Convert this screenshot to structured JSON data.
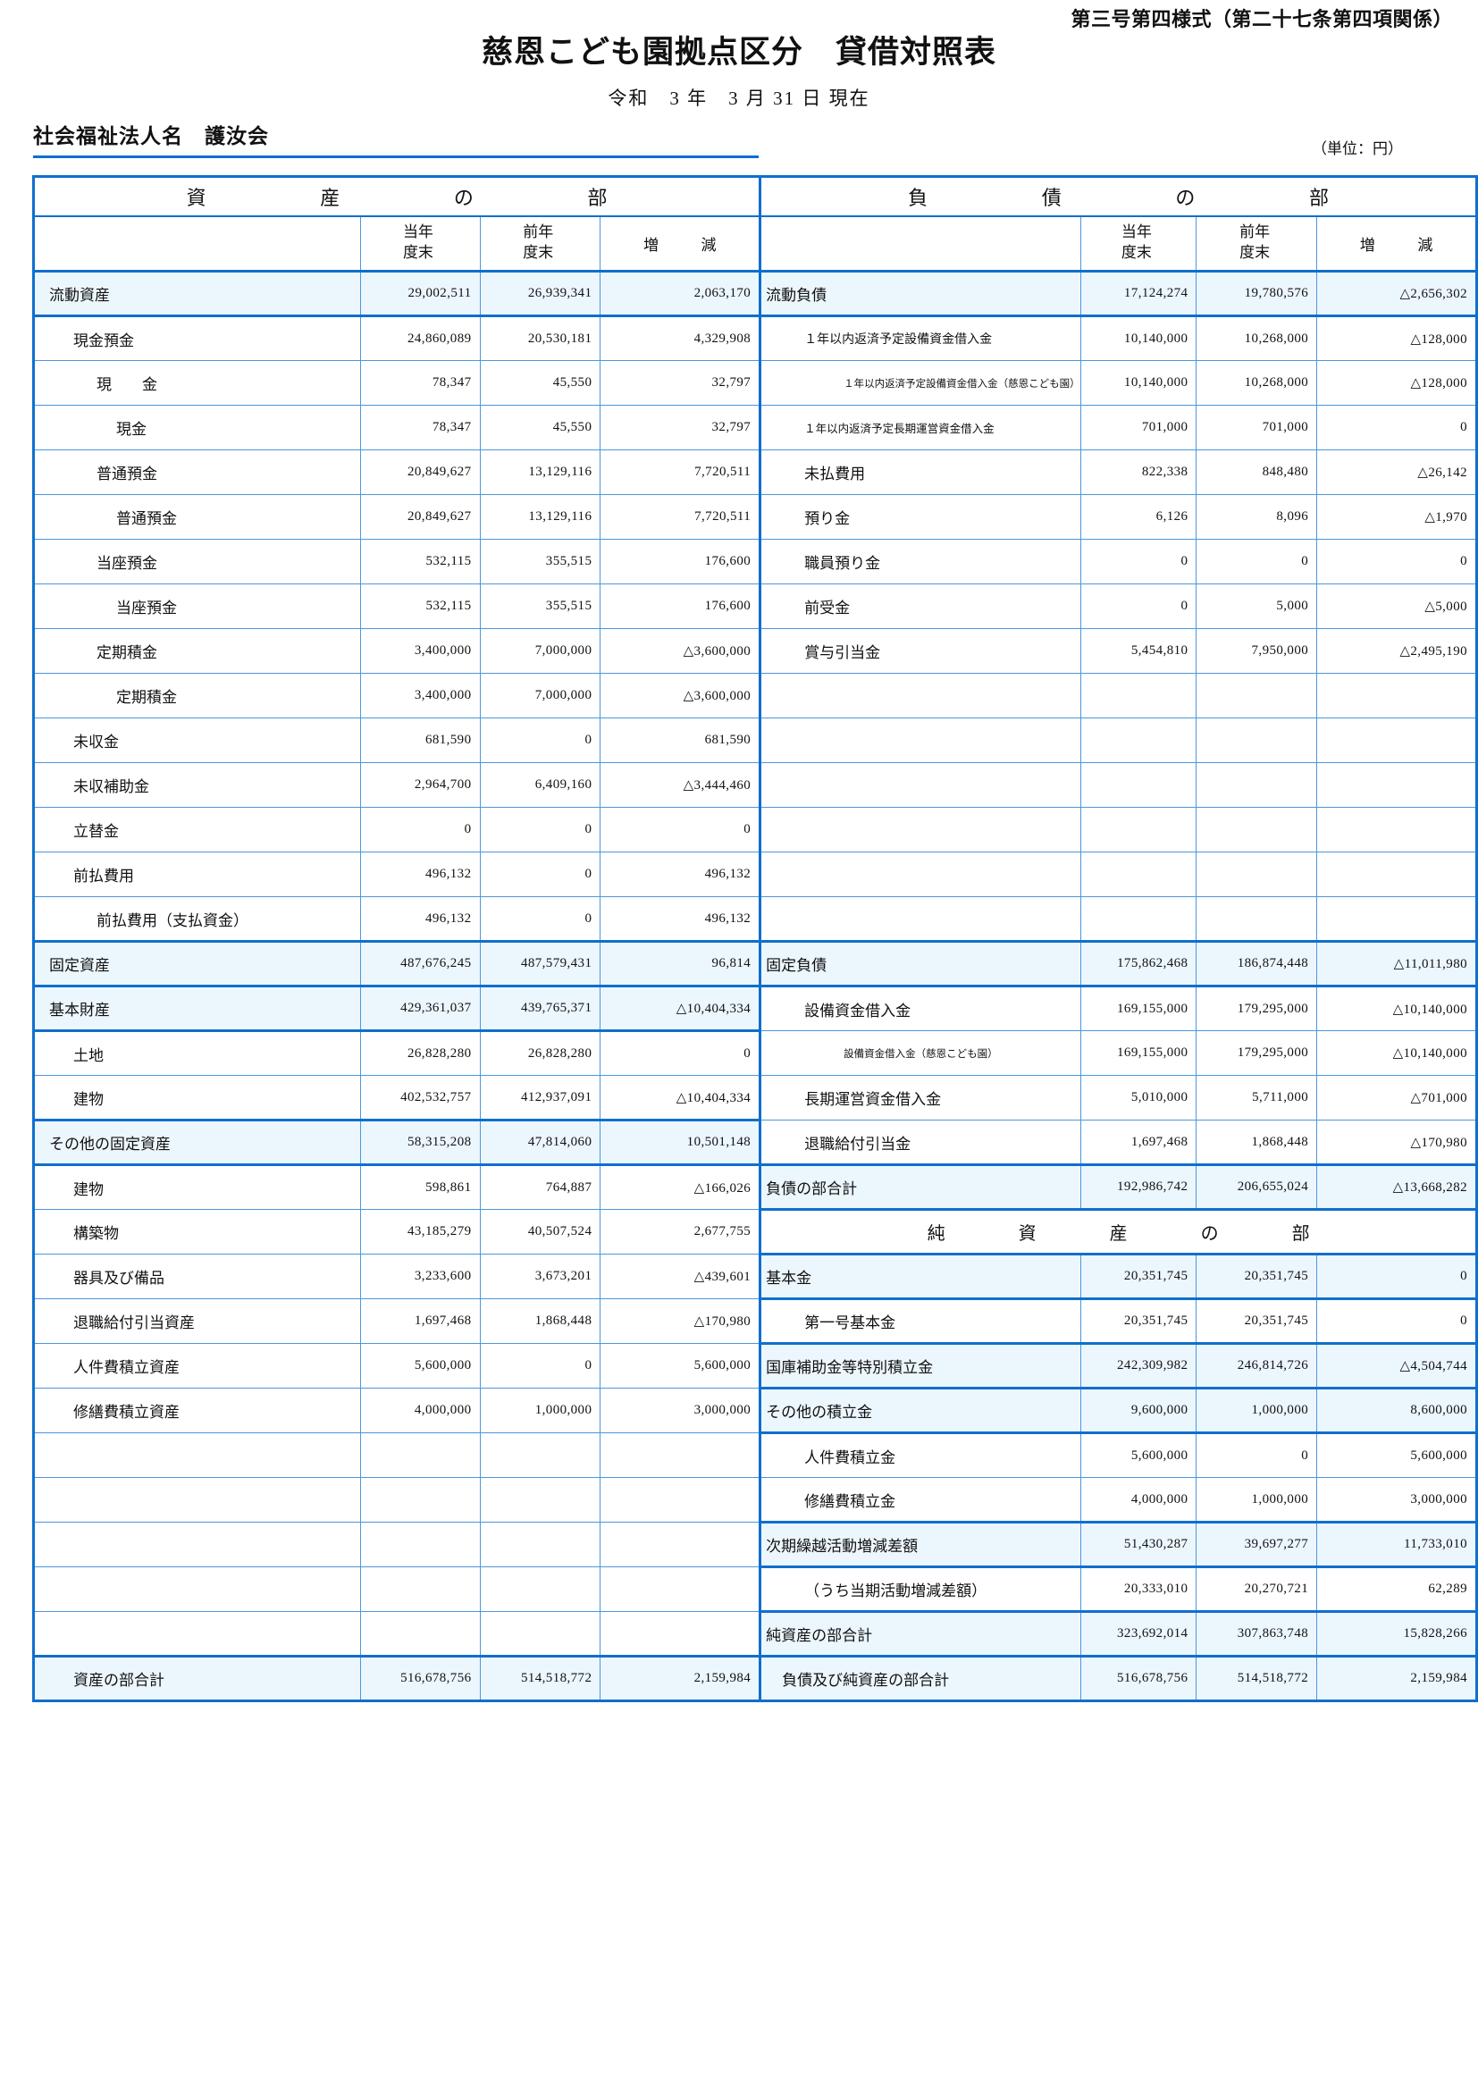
{
  "page": {
    "form_note": "第三号第四様式（第二十七条第四項関係）",
    "title": "慈恩こども園拠点区分　貸借対照表",
    "date_line": "令和　3 年　3 月 31 日 現在",
    "corporation_line": "社会福祉法人名　護汝会",
    "unit_note": "（単位：円）"
  },
  "colors": {
    "border_blue": "#0f6fce",
    "grid_blue": "#4b97dd",
    "row_highlight": "#ecf6fd"
  },
  "table": {
    "assets_section_title": "資産の部",
    "liabilities_section_title": "負債の部",
    "net_assets_section_title": "純資産の部",
    "columns": {
      "current": "当年度末",
      "previous": "前年度末",
      "change": "増減"
    },
    "rows": [
      {
        "left": {
          "label": "流動資産",
          "indent": 0,
          "hl": true,
          "cur": "29,002,511",
          "prev": "26,939,341",
          "chg": "2,063,170"
        },
        "right": {
          "label": "流動負債",
          "indent": 0,
          "hl": true,
          "cur": "17,124,274",
          "prev": "19,780,576",
          "chg": "△2,656,302"
        }
      },
      {
        "left": {
          "label": "現金預金",
          "indent": 1,
          "cur": "24,860,089",
          "prev": "20,530,181",
          "chg": "4,329,908"
        },
        "right": {
          "label": "１年以内返済予定設備資金借入金",
          "indent": 1,
          "size": "m",
          "cur": "10,140,000",
          "prev": "10,268,000",
          "chg": "△128,000"
        }
      },
      {
        "left": {
          "label": "現　　金",
          "indent": 2,
          "cur": "78,347",
          "prev": "45,550",
          "chg": "32,797"
        },
        "right": {
          "label": "１年以内返済予定設備資金借入金（慈恩こども園）",
          "indent": 2,
          "size": "s",
          "cur": "10,140,000",
          "prev": "10,268,000",
          "chg": "△128,000"
        }
      },
      {
        "left": {
          "label": "現金",
          "indent": 3,
          "cur": "78,347",
          "prev": "45,550",
          "chg": "32,797"
        },
        "right": {
          "label": "１年以内返済予定長期運営資金借入金",
          "indent": 1,
          "size": "s2",
          "cur": "701,000",
          "prev": "701,000",
          "chg": "0"
        }
      },
      {
        "left": {
          "label": "普通預金",
          "indent": 2,
          "cur": "20,849,627",
          "prev": "13,129,116",
          "chg": "7,720,511"
        },
        "right": {
          "label": "未払費用",
          "indent": 1,
          "cur": "822,338",
          "prev": "848,480",
          "chg": "△26,142"
        }
      },
      {
        "left": {
          "label": "普通預金",
          "indent": 3,
          "cur": "20,849,627",
          "prev": "13,129,116",
          "chg": "7,720,511"
        },
        "right": {
          "label": "預り金",
          "indent": 1,
          "cur": "6,126",
          "prev": "8,096",
          "chg": "△1,970"
        }
      },
      {
        "left": {
          "label": "当座預金",
          "indent": 2,
          "cur": "532,115",
          "prev": "355,515",
          "chg": "176,600"
        },
        "right": {
          "label": "職員預り金",
          "indent": 1,
          "cur": "0",
          "prev": "0",
          "chg": "0"
        }
      },
      {
        "left": {
          "label": "当座預金",
          "indent": 3,
          "cur": "532,115",
          "prev": "355,515",
          "chg": "176,600"
        },
        "right": {
          "label": "前受金",
          "indent": 1,
          "cur": "0",
          "prev": "5,000",
          "chg": "△5,000"
        }
      },
      {
        "left": {
          "label": "定期積金",
          "indent": 2,
          "cur": "3,400,000",
          "prev": "7,000,000",
          "chg": "△3,600,000"
        },
        "right": {
          "label": "賞与引当金",
          "indent": 1,
          "cur": "5,454,810",
          "prev": "7,950,000",
          "chg": "△2,495,190"
        }
      },
      {
        "left": {
          "label": "定期積金",
          "indent": 3,
          "cur": "3,400,000",
          "prev": "7,000,000",
          "chg": "△3,600,000"
        },
        "right": null
      },
      {
        "left": {
          "label": "未収金",
          "indent": 1,
          "cur": "681,590",
          "prev": "0",
          "chg": "681,590"
        },
        "right": null
      },
      {
        "left": {
          "label": "未収補助金",
          "indent": 1,
          "cur": "2,964,700",
          "prev": "6,409,160",
          "chg": "△3,444,460"
        },
        "right": null
      },
      {
        "left": {
          "label": "立替金",
          "indent": 1,
          "cur": "0",
          "prev": "0",
          "chg": "0"
        },
        "right": null
      },
      {
        "left": {
          "label": "前払費用",
          "indent": 1,
          "cur": "496,132",
          "prev": "0",
          "chg": "496,132"
        },
        "right": null
      },
      {
        "left": {
          "label": "前払費用（支払資金）",
          "indent": 2,
          "cur": "496,132",
          "prev": "0",
          "chg": "496,132"
        },
        "right": null
      },
      {
        "left": {
          "label": "固定資産",
          "indent": 0,
          "hl": true,
          "cur": "487,676,245",
          "prev": "487,579,431",
          "chg": "96,814"
        },
        "right": {
          "label": "固定負債",
          "indent": 0,
          "hl": true,
          "cur": "175,862,468",
          "prev": "186,874,448",
          "chg": "△11,011,980"
        }
      },
      {
        "left": {
          "label": "基本財産",
          "indent": 0,
          "hl": true,
          "cur": "429,361,037",
          "prev": "439,765,371",
          "chg": "△10,404,334"
        },
        "right": {
          "label": "設備資金借入金",
          "indent": 1,
          "cur": "169,155,000",
          "prev": "179,295,000",
          "chg": "△10,140,000"
        }
      },
      {
        "left": {
          "label": "土地",
          "indent": 1,
          "cur": "26,828,280",
          "prev": "26,828,280",
          "chg": "0"
        },
        "right": {
          "label": "設備資金借入金（慈恩こども園）",
          "indent": 2,
          "size": "s",
          "cur": "169,155,000",
          "prev": "179,295,000",
          "chg": "△10,140,000"
        }
      },
      {
        "left": {
          "label": "建物",
          "indent": 1,
          "cur": "402,532,757",
          "prev": "412,937,091",
          "chg": "△10,404,334"
        },
        "right": {
          "label": "長期運営資金借入金",
          "indent": 1,
          "cur": "5,010,000",
          "prev": "5,711,000",
          "chg": "△701,000"
        }
      },
      {
        "left": {
          "label": "その他の固定資産",
          "indent": 0,
          "hl": true,
          "cur": "58,315,208",
          "prev": "47,814,060",
          "chg": "10,501,148"
        },
        "right": {
          "label": "退職給付引当金",
          "indent": 1,
          "cur": "1,697,468",
          "prev": "1,868,448",
          "chg": "△170,980"
        }
      },
      {
        "left": {
          "label": "建物",
          "indent": 1,
          "cur": "598,861",
          "prev": "764,887",
          "chg": "△166,026"
        },
        "right": {
          "label": "負債の部合計",
          "indent": 0,
          "hl": true,
          "cur": "192,986,742",
          "prev": "206,655,024",
          "chg": "△13,668,282"
        }
      },
      {
        "left": {
          "label": "構築物",
          "indent": 1,
          "cur": "43,185,279",
          "prev": "40,507,524",
          "chg": "2,677,755"
        },
        "right": {
          "section": "純資産の部"
        }
      },
      {
        "left": {
          "label": "器具及び備品",
          "indent": 1,
          "cur": "3,233,600",
          "prev": "3,673,201",
          "chg": "△439,601"
        },
        "right": {
          "label": "基本金",
          "indent": 0,
          "hl": true,
          "cur": "20,351,745",
          "prev": "20,351,745",
          "chg": "0"
        }
      },
      {
        "left": {
          "label": "退職給付引当資産",
          "indent": 1,
          "cur": "1,697,468",
          "prev": "1,868,448",
          "chg": "△170,980"
        },
        "right": {
          "label": "第一号基本金",
          "indent": 1,
          "cur": "20,351,745",
          "prev": "20,351,745",
          "chg": "0"
        }
      },
      {
        "left": {
          "label": "人件費積立資産",
          "indent": 1,
          "cur": "5,600,000",
          "prev": "0",
          "chg": "5,600,000"
        },
        "right": {
          "label": "国庫補助金等特別積立金",
          "indent": 0,
          "hl": true,
          "cur": "242,309,982",
          "prev": "246,814,726",
          "chg": "△4,504,744"
        }
      },
      {
        "left": {
          "label": "修繕費積立資産",
          "indent": 1,
          "cur": "4,000,000",
          "prev": "1,000,000",
          "chg": "3,000,000"
        },
        "right": {
          "label": "その他の積立金",
          "indent": 0,
          "hl": true,
          "cur": "9,600,000",
          "prev": "1,000,000",
          "chg": "8,600,000"
        }
      },
      {
        "left": null,
        "right": {
          "label": "人件費積立金",
          "indent": 1,
          "cur": "5,600,000",
          "prev": "0",
          "chg": "5,600,000"
        }
      },
      {
        "left": null,
        "right": {
          "label": "修繕費積立金",
          "indent": 1,
          "cur": "4,000,000",
          "prev": "1,000,000",
          "chg": "3,000,000"
        }
      },
      {
        "left": null,
        "right": {
          "label": "次期繰越活動増減差額",
          "indent": 0,
          "hl": true,
          "cur": "51,430,287",
          "prev": "39,697,277",
          "chg": "11,733,010"
        }
      },
      {
        "left": null,
        "right": {
          "label": "（うち当期活動増減差額）",
          "indent": 1,
          "cur": "20,333,010",
          "prev": "20,270,721",
          "chg": "62,289"
        }
      },
      {
        "left": null,
        "right": {
          "label": "純資産の部合計",
          "indent": 0,
          "hl": true,
          "cur": "323,692,014",
          "prev": "307,863,748",
          "chg": "15,828,266"
        }
      },
      {
        "left": {
          "label": "資産の部合計",
          "indent": 1,
          "hl": true,
          "cur": "516,678,756",
          "prev": "514,518,772",
          "chg": "2,159,984"
        },
        "right": {
          "label": "負債及び純資産の部合計",
          "indent": 0.5,
          "hl": true,
          "cur": "516,678,756",
          "prev": "514,518,772",
          "chg": "2,159,984"
        }
      }
    ]
  }
}
